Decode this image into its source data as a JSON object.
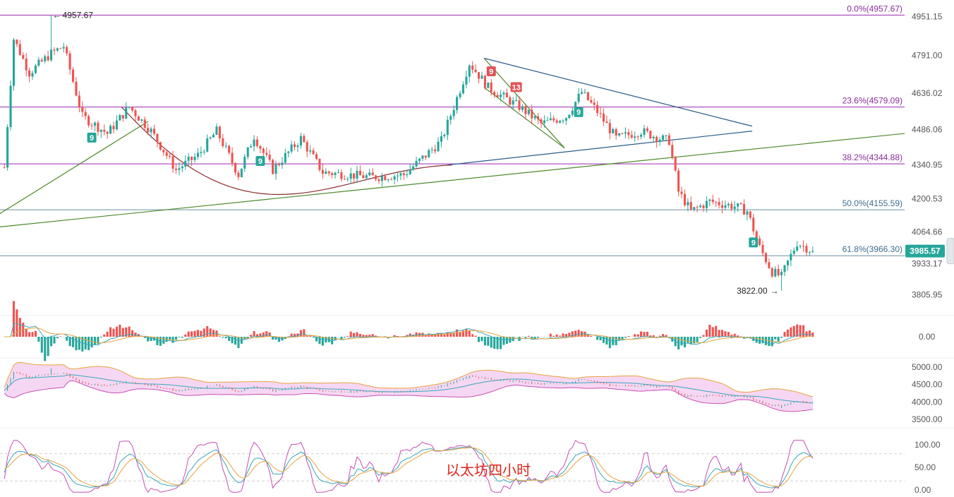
{
  "caption": "以太坊四小时",
  "colors": {
    "up": "#26a69a",
    "down": "#ef5350",
    "fib_line": "#9c27b0",
    "fib_line_alt": "#6b8fa3",
    "trend_blue": "#2a5b8c",
    "trend_green": "#4c8a2a",
    "arc": "#8b2c2c",
    "price_tag": "#26a69a",
    "caption": "#e0241b",
    "td_up": "#26a69a",
    "td_down": "#e05356"
  },
  "chart_data": {
    "type": "candlestick",
    "main_panel": {
      "y_ticks": [
        "4951.15",
        "4791.00",
        "4636.02",
        "4486.06",
        "4340.95",
        "4200.53",
        "4064.66",
        "3933.17",
        "3805.95"
      ],
      "ylim": [
        3740,
        5020
      ],
      "last_price": "3985.57",
      "high_marker": {
        "label": "4957.67",
        "value": 4957.67
      },
      "low_marker": {
        "label": "3822.00",
        "value": 3822.0
      },
      "fib_levels": [
        {
          "label": "0.0%(4957.67)",
          "value": 4957.67
        },
        {
          "label": "23.6%(4579.09)",
          "value": 4579.09
        },
        {
          "label": "38.2%(4344.88)",
          "value": 4344.88
        },
        {
          "label": "50.0%(4155.59)",
          "value": 4155.59
        },
        {
          "label": "61.8%(3966.30)",
          "value": 3966.3
        }
      ],
      "td_marks": [
        {
          "label": "9",
          "side": "up"
        },
        {
          "label": "9",
          "side": "up"
        },
        {
          "label": "9",
          "side": "down"
        },
        {
          "label": "13",
          "side": "down"
        },
        {
          "label": "9",
          "side": "up"
        },
        {
          "label": "9",
          "side": "up"
        }
      ],
      "keypoints": [
        {
          "i": 0,
          "v": 4330
        },
        {
          "i": 3,
          "v": 4860
        },
        {
          "i": 8,
          "v": 4720
        },
        {
          "i": 15,
          "v": 4800
        },
        {
          "i": 19,
          "v": 4830
        },
        {
          "i": 25,
          "v": 4540
        },
        {
          "i": 33,
          "v": 4470
        },
        {
          "i": 40,
          "v": 4580
        },
        {
          "i": 47,
          "v": 4480
        },
        {
          "i": 55,
          "v": 4320
        },
        {
          "i": 62,
          "v": 4380
        },
        {
          "i": 68,
          "v": 4480
        },
        {
          "i": 75,
          "v": 4300
        },
        {
          "i": 80,
          "v": 4460
        },
        {
          "i": 86,
          "v": 4320
        },
        {
          "i": 95,
          "v": 4450
        },
        {
          "i": 102,
          "v": 4310
        },
        {
          "i": 110,
          "v": 4300
        },
        {
          "i": 118,
          "v": 4290
        },
        {
          "i": 128,
          "v": 4300
        },
        {
          "i": 135,
          "v": 4380
        },
        {
          "i": 140,
          "v": 4440
        },
        {
          "i": 144,
          "v": 4580
        },
        {
          "i": 149,
          "v": 4760
        },
        {
          "i": 155,
          "v": 4660
        },
        {
          "i": 165,
          "v": 4580
        },
        {
          "i": 172,
          "v": 4510
        },
        {
          "i": 180,
          "v": 4540
        },
        {
          "i": 185,
          "v": 4640
        },
        {
          "i": 190,
          "v": 4560
        },
        {
          "i": 196,
          "v": 4450
        },
        {
          "i": 204,
          "v": 4480
        },
        {
          "i": 210,
          "v": 4450
        },
        {
          "i": 213,
          "v": 4440
        },
        {
          "i": 216,
          "v": 4230
        },
        {
          "i": 220,
          "v": 4150
        },
        {
          "i": 226,
          "v": 4190
        },
        {
          "i": 234,
          "v": 4170
        },
        {
          "i": 238,
          "v": 4150
        },
        {
          "i": 242,
          "v": 4000
        },
        {
          "i": 246,
          "v": 3900
        },
        {
          "i": 249,
          "v": 3880
        },
        {
          "i": 251,
          "v": 3940
        },
        {
          "i": 254,
          "v": 4020
        },
        {
          "i": 259,
          "v": 3985
        }
      ],
      "n_bars": 260
    },
    "macd_panel": {
      "y_ticks": [
        "0.00"
      ]
    },
    "boll_panel": {
      "y_ticks": [
        "5000.00",
        "4500.00",
        "4000.00",
        "3500.00"
      ]
    },
    "kdj_panel": {
      "y_ticks": [
        "100.00",
        "50.00",
        "0.00"
      ]
    }
  }
}
